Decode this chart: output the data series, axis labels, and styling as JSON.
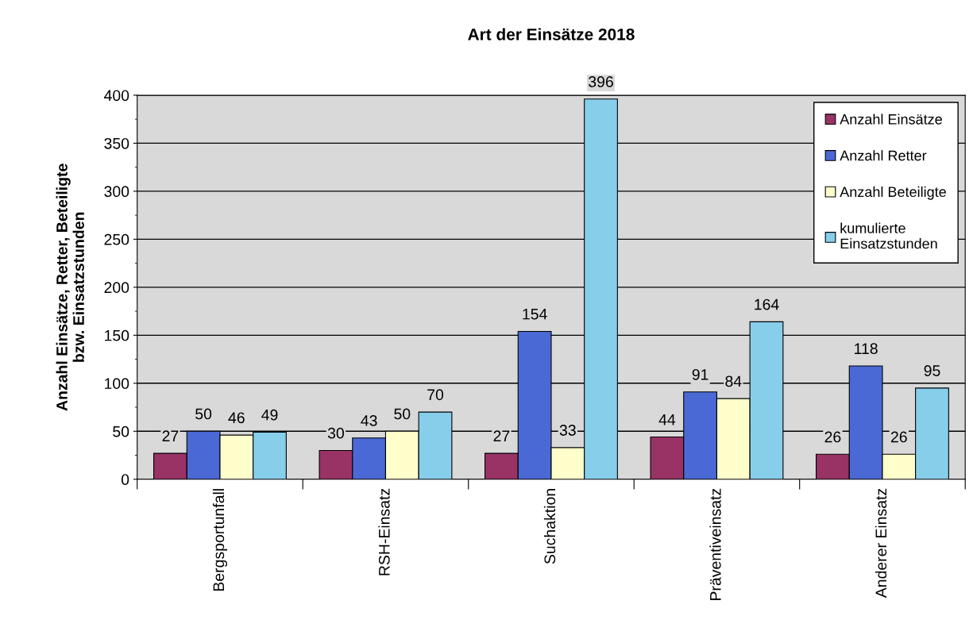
{
  "chart_data": {
    "type": "bar",
    "title": "Art der Einsätze 2018",
    "ylabel": "Anzahl Einsätze, Retter, Beteiligte\nbzw. Einsatzstunden",
    "categories": [
      "Bergsportunfall",
      "RSH-Einsatz",
      "Suchaktion",
      "Präventiveinsatz",
      "Anderer Einsatz"
    ],
    "series": [
      {
        "name": "Anzahl Einsätze",
        "color": "#993366",
        "values": [
          27,
          30,
          27,
          44,
          26
        ]
      },
      {
        "name": "Anzahl Retter",
        "color": "#4a69d4",
        "values": [
          50,
          43,
          154,
          91,
          118
        ]
      },
      {
        "name": "Anzahl Beteiligte",
        "color": "#ffffcc",
        "values": [
          46,
          50,
          33,
          84,
          26
        ]
      },
      {
        "name": "kumulierte\nEinsatzstunden",
        "color": "#87ceeb",
        "values": [
          49,
          70,
          396,
          164,
          95
        ]
      }
    ],
    "ylim": [
      0,
      400
    ],
    "yticks": [
      0,
      50,
      100,
      150,
      200,
      250,
      300,
      350,
      400
    ],
    "grid": "y",
    "legend": "top right",
    "data_labels": true
  }
}
